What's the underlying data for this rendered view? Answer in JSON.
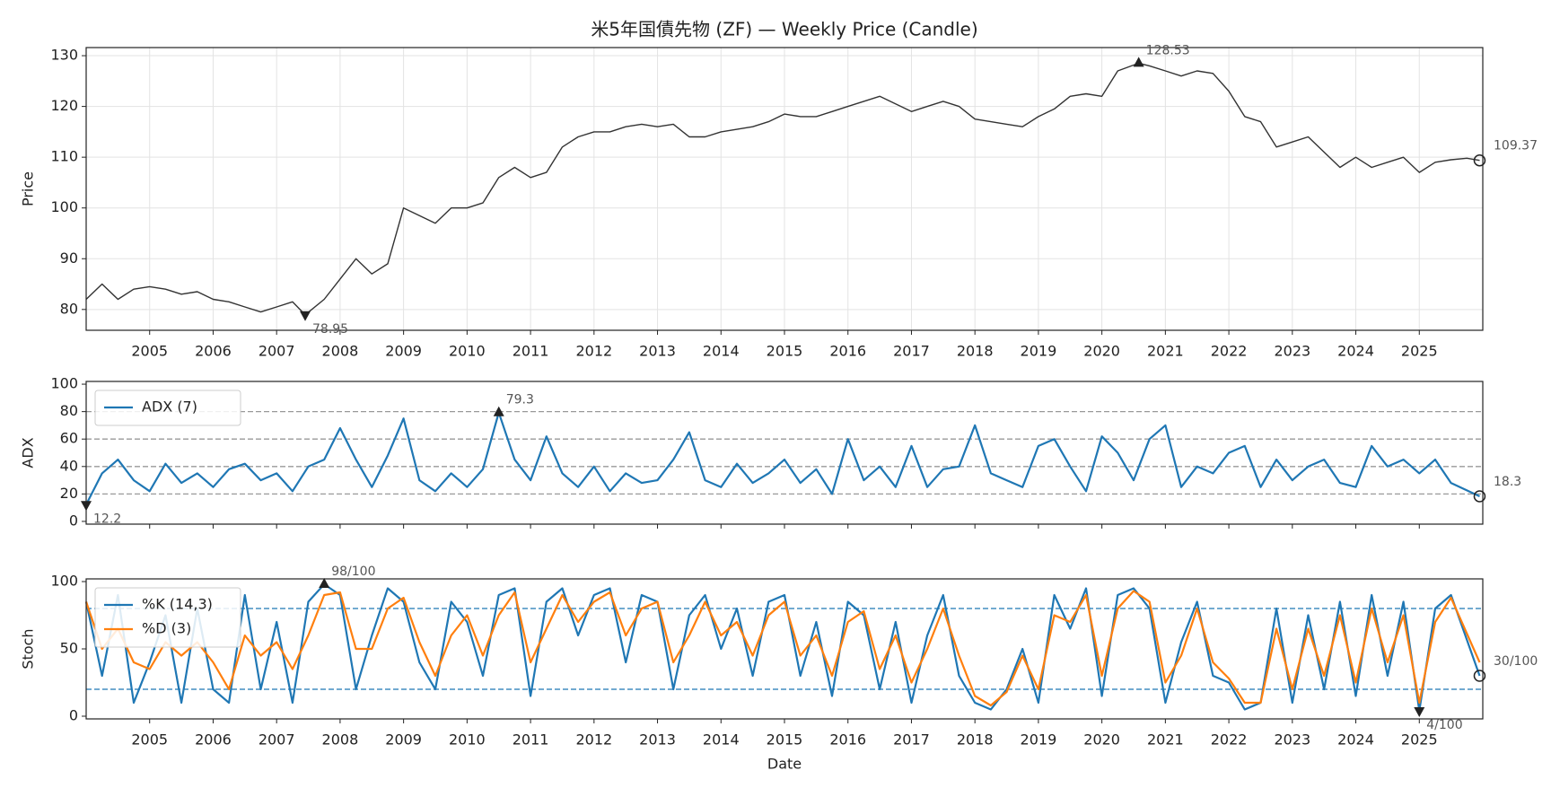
{
  "chart_data": [
    {
      "type": "line",
      "title": "米5年国債先物 (ZF) — Weekly Price (Candle)",
      "ylabel": "Price",
      "xlim": [
        2004.0,
        2026.0
      ],
      "xticks": [
        2005,
        2006,
        2007,
        2008,
        2009,
        2010,
        2011,
        2012,
        2013,
        2014,
        2015,
        2016,
        2017,
        2018,
        2019,
        2020,
        2021,
        2022,
        2023,
        2024,
        2025
      ],
      "xtick_labels": true,
      "ylim": [
        75.9,
        131.6
      ],
      "yticks": [
        80,
        90,
        100,
        110,
        120,
        130
      ],
      "grid": true,
      "x": [
        2004.0,
        2004.25,
        2004.5,
        2004.75,
        2005.0,
        2005.25,
        2005.5,
        2005.75,
        2006.0,
        2006.25,
        2006.5,
        2006.75,
        2007.0,
        2007.25,
        2007.45,
        2007.75,
        2008.0,
        2008.25,
        2008.5,
        2008.75,
        2009.0,
        2009.25,
        2009.5,
        2009.75,
        2010.0,
        2010.25,
        2010.5,
        2010.75,
        2011.0,
        2011.25,
        2011.5,
        2011.75,
        2012.0,
        2012.25,
        2012.5,
        2012.75,
        2013.0,
        2013.25,
        2013.5,
        2013.75,
        2014.0,
        2014.25,
        2014.5,
        2014.75,
        2015.0,
        2015.25,
        2015.5,
        2015.75,
        2016.0,
        2016.25,
        2016.5,
        2016.75,
        2017.0,
        2017.25,
        2017.5,
        2017.75,
        2018.0,
        2018.25,
        2018.5,
        2018.75,
        2019.0,
        2019.25,
        2019.5,
        2019.75,
        2020.0,
        2020.25,
        2020.58,
        2020.75,
        2021.0,
        2021.25,
        2021.5,
        2021.75,
        2022.0,
        2022.25,
        2022.5,
        2022.75,
        2023.0,
        2023.25,
        2023.5,
        2023.75,
        2024.0,
        2024.25,
        2024.5,
        2024.75,
        2025.0,
        2025.25,
        2025.5,
        2025.75,
        2025.95
      ],
      "series": [
        {
          "color": "#333333",
          "values": [
            82,
            85,
            82,
            84,
            84.5,
            84,
            83,
            83.5,
            82,
            81.5,
            80.5,
            79.5,
            80.5,
            81.5,
            78.95,
            82,
            86,
            90,
            87,
            89,
            100,
            98.5,
            97,
            100,
            100,
            101,
            106,
            108,
            106,
            107,
            112,
            114,
            115,
            115,
            116,
            116.5,
            116,
            116.5,
            114,
            114,
            115,
            115.5,
            116,
            117,
            118.5,
            118,
            118,
            119,
            120,
            121,
            122,
            120.5,
            119,
            120,
            121,
            120,
            117.5,
            117,
            116.5,
            116,
            118,
            119.5,
            122,
            122.5,
            122,
            127,
            128.53,
            128,
            127,
            126,
            127,
            126.5,
            123,
            118,
            117,
            112,
            113,
            114,
            111,
            108,
            110,
            108,
            109,
            110,
            107,
            109,
            109.5,
            109.8,
            109.37
          ]
        }
      ],
      "annotations": [
        {
          "x": 2007.45,
          "value": 78.95,
          "label": "78.95",
          "marker": "min"
        },
        {
          "x": 2020.58,
          "value": 128.53,
          "label": "128.53",
          "marker": "max"
        },
        {
          "x": 2025.95,
          "value": 109.37,
          "label": "109.37",
          "marker": "last"
        }
      ]
    },
    {
      "type": "line",
      "ylabel": "ADX",
      "xlim": [
        2004.0,
        2026.0
      ],
      "xticks": [
        2005,
        2006,
        2007,
        2008,
        2009,
        2010,
        2011,
        2012,
        2013,
        2014,
        2015,
        2016,
        2017,
        2018,
        2019,
        2020,
        2021,
        2022,
        2023,
        2024,
        2025
      ],
      "xtick_labels": false,
      "ylim": [
        -2,
        102
      ],
      "yticks": [
        0,
        20,
        40,
        60,
        80,
        100
      ],
      "grid": false,
      "hlines": [
        20,
        40,
        60,
        80
      ],
      "hline_color": "#999999",
      "legend": "upper left",
      "x": [
        2004.0,
        2004.25,
        2004.5,
        2004.75,
        2005.0,
        2005.25,
        2005.5,
        2005.75,
        2006.0,
        2006.25,
        2006.5,
        2006.75,
        2007.0,
        2007.25,
        2007.5,
        2007.75,
        2008.0,
        2008.25,
        2008.5,
        2008.75,
        2009.0,
        2009.25,
        2009.5,
        2009.75,
        2010.0,
        2010.25,
        2010.5,
        2010.75,
        2011.0,
        2011.25,
        2011.5,
        2011.75,
        2012.0,
        2012.25,
        2012.5,
        2012.75,
        2013.0,
        2013.25,
        2013.5,
        2013.75,
        2014.0,
        2014.25,
        2014.5,
        2014.75,
        2015.0,
        2015.25,
        2015.5,
        2015.75,
        2016.0,
        2016.25,
        2016.5,
        2016.75,
        2017.0,
        2017.25,
        2017.5,
        2017.75,
        2018.0,
        2018.25,
        2018.5,
        2018.75,
        2019.0,
        2019.25,
        2019.5,
        2019.75,
        2020.0,
        2020.25,
        2020.5,
        2020.75,
        2021.0,
        2021.25,
        2021.5,
        2021.75,
        2022.0,
        2022.25,
        2022.5,
        2022.75,
        2023.0,
        2023.25,
        2023.5,
        2023.75,
        2024.0,
        2024.25,
        2024.5,
        2024.75,
        2025.0,
        2025.25,
        2025.5,
        2025.95
      ],
      "series": [
        {
          "name": "ADX (7)",
          "color": "#1f77b4",
          "values": [
            12.2,
            35,
            45,
            30,
            22,
            42,
            28,
            35,
            25,
            38,
            42,
            30,
            35,
            22,
            40,
            45,
            68,
            45,
            25,
            48,
            75,
            30,
            22,
            35,
            25,
            38,
            79.3,
            45,
            30,
            62,
            35,
            25,
            40,
            22,
            35,
            28,
            30,
            45,
            65,
            30,
            25,
            42,
            28,
            35,
            45,
            28,
            38,
            20,
            60,
            30,
            40,
            25,
            55,
            25,
            38,
            40,
            70,
            35,
            30,
            25,
            55,
            60,
            40,
            22,
            62,
            50,
            30,
            60,
            70,
            25,
            40,
            35,
            50,
            55,
            25,
            45,
            30,
            40,
            45,
            28,
            25,
            55,
            40,
            45,
            35,
            45,
            28,
            18.3
          ]
        }
      ],
      "annotations": [
        {
          "x": 2004.0,
          "value": 12.2,
          "label": "12.2",
          "marker": "min"
        },
        {
          "x": 2010.5,
          "value": 79.3,
          "label": "79.3",
          "marker": "max"
        },
        {
          "x": 2025.95,
          "value": 18.3,
          "label": "18.3",
          "marker": "last"
        }
      ]
    },
    {
      "type": "line",
      "ylabel": "Stoch",
      "xlabel": "Date",
      "xlim": [
        2004.0,
        2026.0
      ],
      "xticks": [
        2005,
        2006,
        2007,
        2008,
        2009,
        2010,
        2011,
        2012,
        2013,
        2014,
        2015,
        2016,
        2017,
        2018,
        2019,
        2020,
        2021,
        2022,
        2023,
        2024,
        2025
      ],
      "xtick_labels": true,
      "ylim": [
        -2,
        102
      ],
      "yticks": [
        0,
        50,
        100
      ],
      "grid": false,
      "hlines": [
        20,
        80
      ],
      "hline_color": "#1f77b4",
      "legend": "upper left",
      "x": [
        2004.0,
        2004.25,
        2004.5,
        2004.75,
        2005.0,
        2005.25,
        2005.5,
        2005.75,
        2006.0,
        2006.25,
        2006.5,
        2006.75,
        2007.0,
        2007.25,
        2007.5,
        2007.75,
        2008.0,
        2008.25,
        2008.5,
        2008.75,
        2009.0,
        2009.25,
        2009.5,
        2009.75,
        2010.0,
        2010.25,
        2010.5,
        2010.75,
        2011.0,
        2011.25,
        2011.5,
        2011.75,
        2012.0,
        2012.25,
        2012.5,
        2012.75,
        2013.0,
        2013.25,
        2013.5,
        2013.75,
        2014.0,
        2014.25,
        2014.5,
        2014.75,
        2015.0,
        2015.25,
        2015.5,
        2015.75,
        2016.0,
        2016.25,
        2016.5,
        2016.75,
        2017.0,
        2017.25,
        2017.5,
        2017.75,
        2018.0,
        2018.25,
        2018.5,
        2018.75,
        2019.0,
        2019.25,
        2019.5,
        2019.75,
        2020.0,
        2020.25,
        2020.5,
        2020.75,
        2021.0,
        2021.25,
        2021.5,
        2021.75,
        2022.0,
        2022.25,
        2022.5,
        2022.75,
        2023.0,
        2023.25,
        2023.5,
        2023.75,
        2024.0,
        2024.25,
        2024.5,
        2024.75,
        2025.0,
        2025.25,
        2025.5,
        2025.95
      ],
      "series": [
        {
          "name": "%K (14,3)",
          "color": "#1f77b4",
          "values": [
            85,
            30,
            90,
            10,
            40,
            75,
            10,
            80,
            20,
            10,
            90,
            20,
            70,
            10,
            85,
            98,
            90,
            20,
            60,
            95,
            85,
            40,
            20,
            85,
            70,
            30,
            90,
            95,
            15,
            85,
            95,
            60,
            90,
            95,
            40,
            90,
            85,
            20,
            75,
            90,
            50,
            80,
            30,
            85,
            90,
            30,
            70,
            15,
            85,
            75,
            20,
            70,
            10,
            60,
            90,
            30,
            10,
            5,
            20,
            50,
            10,
            90,
            65,
            95,
            15,
            90,
            95,
            80,
            10,
            55,
            85,
            30,
            25,
            5,
            10,
            80,
            10,
            75,
            20,
            85,
            15,
            90,
            30,
            85,
            4,
            80,
            90,
            30
          ]
        },
        {
          "name": "%D (3)",
          "color": "#ff7f0e",
          "values": [
            85,
            50,
            65,
            40,
            35,
            55,
            45,
            55,
            40,
            20,
            60,
            45,
            55,
            35,
            60,
            90,
            92,
            50,
            50,
            80,
            88,
            55,
            30,
            60,
            75,
            45,
            75,
            92,
            40,
            65,
            90,
            70,
            85,
            92,
            60,
            80,
            85,
            40,
            60,
            85,
            60,
            70,
            45,
            75,
            85,
            45,
            60,
            30,
            70,
            78,
            35,
            60,
            25,
            50,
            80,
            45,
            15,
            8,
            18,
            45,
            20,
            75,
            70,
            90,
            30,
            80,
            93,
            85,
            25,
            45,
            80,
            40,
            28,
            10,
            10,
            65,
            20,
            65,
            30,
            75,
            25,
            80,
            40,
            75,
            10,
            70,
            88,
            40
          ]
        }
      ],
      "annotations": [
        {
          "x": 2007.75,
          "value": 98,
          "label": "98/100",
          "marker": "max"
        },
        {
          "x": 2025.0,
          "value": 4,
          "label": "4/100",
          "marker": "min"
        },
        {
          "x": 2025.95,
          "value": 30,
          "label": "30/100",
          "marker": "last"
        }
      ]
    }
  ]
}
